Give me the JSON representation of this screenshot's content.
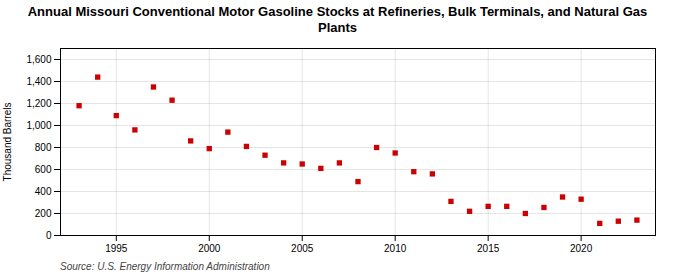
{
  "chart_data": {
    "type": "scatter",
    "title": "Annual Missouri Conventional Motor Gasoline Stocks at Refineries, Bulk Terminals, and Natural Gas Plants",
    "y_label": "Thousand Barrels",
    "annotations": [
      "Source: U.S. Energy Information Administration"
    ],
    "x": [
      1993,
      1994,
      1995,
      1996,
      1997,
      1998,
      1999,
      2000,
      2001,
      2002,
      2003,
      2004,
      2005,
      2006,
      2007,
      2008,
      2009,
      2010,
      2011,
      2012,
      2013,
      2014,
      2015,
      2016,
      2017,
      2018,
      2019,
      2020,
      2021,
      2022,
      2023
    ],
    "values": [
      1180,
      1440,
      1090,
      960,
      1350,
      1230,
      860,
      790,
      940,
      810,
      730,
      660,
      650,
      610,
      660,
      490,
      800,
      750,
      580,
      560,
      310,
      220,
      265,
      265,
      200,
      255,
      350,
      330,
      110,
      130,
      140
    ],
    "color": "#cc0000",
    "marker": "square",
    "xlim": [
      1992,
      2024
    ],
    "xticks": [
      1995,
      2000,
      2005,
      2010,
      2015,
      2020
    ],
    "ylim": [
      0,
      1700
    ],
    "yticks": [
      0,
      200,
      400,
      600,
      800,
      {
        "value": 1000,
        "label": "1,000"
      },
      {
        "value": 1200,
        "label": "1,200"
      },
      {
        "value": 1400,
        "label": "1,400"
      },
      {
        "value": 1600,
        "label": "1,600"
      }
    ],
    "grid": true
  }
}
